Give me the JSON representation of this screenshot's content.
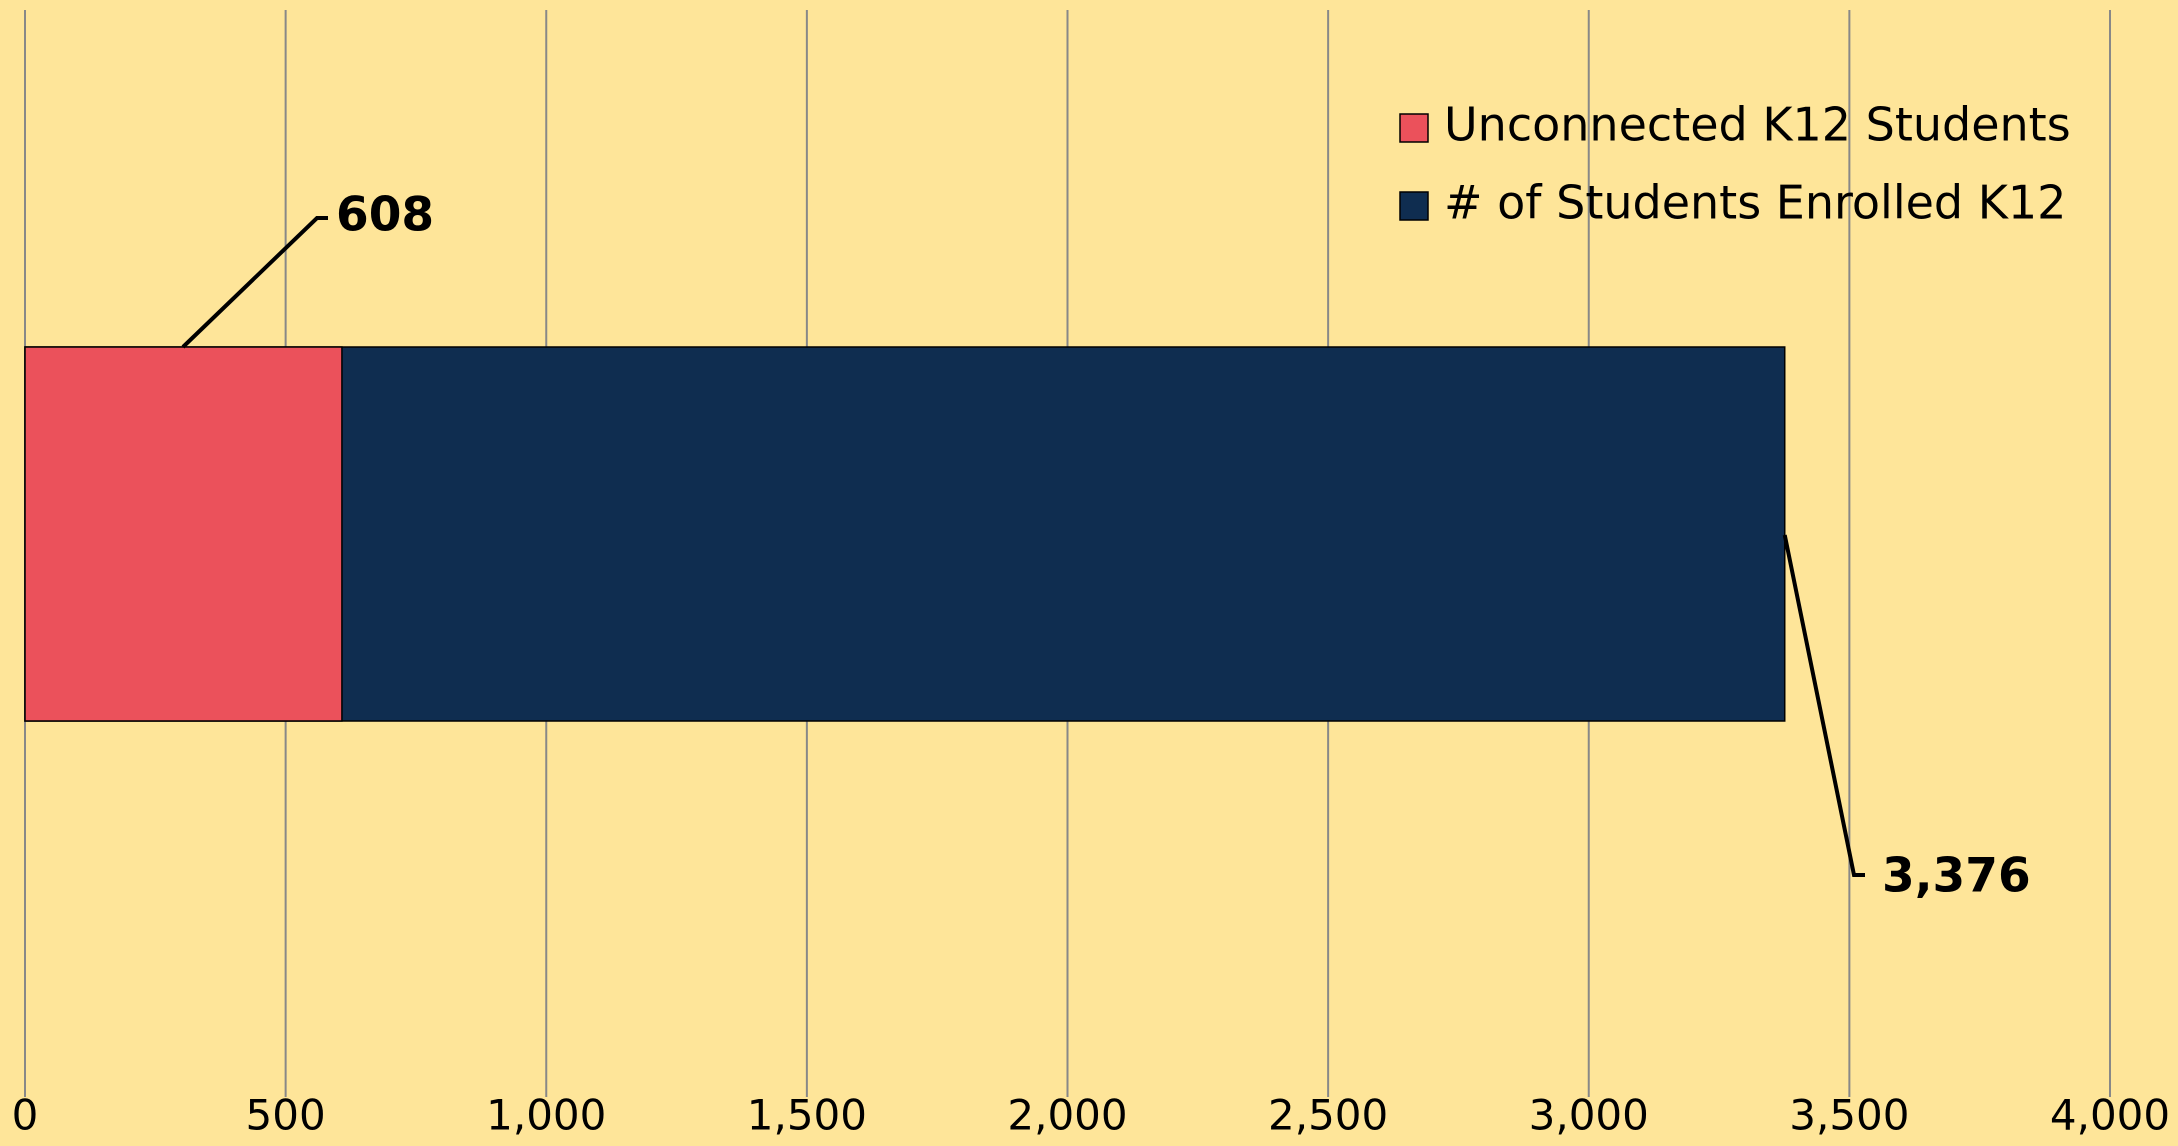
{
  "chart_data": {
    "type": "bar",
    "orientation": "horizontal",
    "stacked": false,
    "categories": [
      null
    ],
    "series": [
      {
        "name": "Unconnected K12 Students",
        "color": "#eb515b",
        "values": [
          608
        ]
      },
      {
        "name": "# of Students Enrolled K12",
        "color": "#0f2d50",
        "values": [
          3376
        ],
        "value_labels": [
          "3,376"
        ]
      }
    ],
    "xlim": [
      0,
      4000
    ],
    "xticks": [
      0,
      500,
      {
        "value": 1000,
        "label": "1,000"
      },
      {
        "value": 1500,
        "label": "1,500"
      },
      {
        "value": 2000,
        "label": "2,000"
      },
      {
        "value": 2500,
        "label": "2,500"
      },
      {
        "value": 3000,
        "label": "3,000"
      },
      {
        "value": 3500,
        "label": "3,500"
      },
      {
        "value": 4000,
        "label": "4,000"
      }
    ],
    "grid": true,
    "legend": "upper right"
  }
}
